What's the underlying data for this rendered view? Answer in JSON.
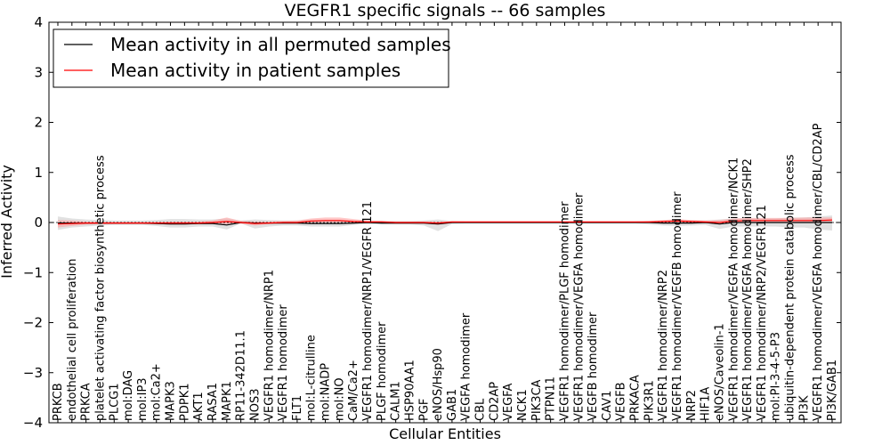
{
  "chart_data": {
    "type": "line",
    "title": "VEGFR1 specific signals -- 66 samples",
    "xlabel": "Cellular Entities",
    "ylabel": "Inferred Activity",
    "ylim": [
      -4,
      4
    ],
    "yticks": [
      -4,
      -3,
      -2,
      -1,
      0,
      1,
      2,
      3,
      4
    ],
    "ytick_labels": [
      "−4",
      "−3",
      "−2",
      "−1",
      "0",
      "1",
      "2",
      "3",
      "4"
    ],
    "legend_position": "top-left",
    "grid": false,
    "categories": [
      "PRKCB",
      "endothelial cell proliferation",
      "PRKCA",
      "platelet activating factor biosynthetic process",
      "PLCG1",
      "mol:DAG",
      "mol:IP3",
      "mol:Ca2+",
      "MAPK3",
      "PDPK1",
      "AKT1",
      "RASA1",
      "MAPK1",
      "RP11-342D11.1",
      "NOS3",
      "VEGFR1 homodimer/NRP1",
      "VEGFR1 homodimer",
      "FLT1",
      "mol:L-citrulline",
      "mol:NADP",
      "mol:NO",
      "CaM/Ca2+",
      "VEGFR1 homodimer/NRP1/VEGFR 121",
      "PLGF homodimer",
      "CALM1",
      "HSP90AA1",
      "PGF",
      "eNOS/Hsp90",
      "GAB1",
      "VEGFA homodimer",
      "CBL",
      "CD2AP",
      "VEGFA",
      "NCK1",
      "PIK3CA",
      "PTPN11",
      "VEGFR1 homodimer/PLGF homodimer",
      "VEGFR1 homodimer/VEGFA homodimer",
      "VEGFB homodimer",
      "CAV1",
      "VEGFB",
      "PRKACA",
      "PIK3R1",
      "VEGFR1 homodimer/NRP2",
      "VEGFR1 homodimer/VEGFB homodimer",
      "NRP2",
      "HIF1A",
      "eNOS/Caveolin-1",
      "VEGFR1 homodimer/VEGFA homodimer/NCK1",
      "VEGFR1 homodimer/VEGFA homodimer/SHP2",
      "VEGFR1 homodimer/NRP2/VEGFR121",
      "mol:PI-3-4-5-P3",
      "ubiquitin-dependent protein catabolic process",
      "PI3K",
      "VEGFR1 homodimer/VEGFA homodimer/CBL/CD2AP",
      "PI3K/GAB1"
    ],
    "series": [
      {
        "name": "Mean activity in all permuted samples",
        "color": "#000000",
        "values": [
          -0.01,
          -0.01,
          -0.01,
          -0.01,
          -0.01,
          -0.01,
          -0.01,
          -0.02,
          -0.03,
          -0.03,
          -0.02,
          -0.02,
          -0.05,
          0.0,
          -0.01,
          -0.01,
          -0.01,
          -0.01,
          -0.02,
          -0.02,
          -0.02,
          -0.01,
          0.0,
          -0.01,
          -0.01,
          -0.01,
          -0.01,
          -0.03,
          0.0,
          0.0,
          0.0,
          0.0,
          0.0,
          0.0,
          0.0,
          0.0,
          0.0,
          0.0,
          0.0,
          0.0,
          0.0,
          0.0,
          0.0,
          -0.01,
          -0.01,
          -0.01,
          0.0,
          -0.03,
          0.0,
          0.0,
          0.0,
          0.0,
          0.0,
          0.0,
          0.0,
          0.0
        ],
        "band_low": [
          -0.15,
          -0.1,
          -0.08,
          -0.06,
          -0.05,
          -0.05,
          -0.05,
          -0.07,
          -0.1,
          -0.1,
          -0.08,
          -0.08,
          -0.14,
          -0.02,
          -0.12,
          -0.08,
          -0.06,
          -0.06,
          -0.08,
          -0.08,
          -0.08,
          -0.05,
          -0.03,
          -0.04,
          -0.04,
          -0.04,
          -0.06,
          -0.17,
          -0.03,
          -0.02,
          -0.02,
          -0.02,
          -0.02,
          -0.02,
          -0.02,
          -0.02,
          -0.02,
          -0.02,
          -0.02,
          -0.02,
          -0.02,
          -0.02,
          -0.04,
          -0.06,
          -0.07,
          -0.06,
          -0.05,
          -0.13,
          -0.08,
          -0.08,
          -0.08,
          -0.08,
          -0.1,
          -0.1,
          -0.14,
          -0.16
        ],
        "band_high": [
          0.12,
          0.08,
          0.06,
          0.05,
          0.04,
          0.04,
          0.04,
          0.05,
          0.07,
          0.07,
          0.06,
          0.06,
          0.08,
          0.04,
          0.06,
          0.05,
          0.04,
          0.04,
          0.05,
          0.05,
          0.05,
          0.04,
          0.03,
          0.03,
          0.03,
          0.03,
          0.04,
          0.06,
          0.03,
          0.02,
          0.02,
          0.02,
          0.02,
          0.02,
          0.02,
          0.02,
          0.02,
          0.02,
          0.02,
          0.02,
          0.02,
          0.02,
          0.03,
          0.04,
          0.05,
          0.04,
          0.04,
          0.06,
          0.08,
          0.08,
          0.08,
          0.08,
          0.1,
          0.1,
          0.12,
          0.14
        ]
      },
      {
        "name": "Mean activity in patient samples",
        "color": "#ff0000",
        "values": [
          -0.03,
          -0.02,
          -0.01,
          -0.01,
          -0.01,
          -0.01,
          -0.01,
          -0.01,
          -0.01,
          -0.01,
          -0.01,
          0.0,
          0.02,
          0.0,
          -0.02,
          -0.01,
          0.0,
          0.0,
          0.03,
          0.04,
          0.04,
          0.02,
          0.01,
          0.01,
          0.0,
          0.0,
          0.0,
          -0.01,
          0.01,
          0.01,
          0.01,
          0.01,
          0.01,
          0.01,
          0.01,
          0.01,
          0.01,
          0.01,
          0.01,
          0.01,
          0.01,
          0.01,
          0.01,
          0.02,
          0.03,
          0.02,
          0.01,
          0.0,
          0.03,
          0.04,
          0.04,
          0.04,
          0.04,
          0.04,
          0.04,
          0.05
        ],
        "band_low": [
          -0.1,
          -0.07,
          -0.04,
          -0.03,
          -0.03,
          -0.03,
          -0.03,
          -0.03,
          -0.04,
          -0.04,
          -0.03,
          -0.03,
          -0.03,
          -0.02,
          -0.06,
          -0.03,
          -0.02,
          -0.02,
          -0.01,
          0.0,
          0.0,
          -0.01,
          -0.01,
          -0.01,
          -0.02,
          -0.02,
          -0.02,
          -0.05,
          -0.01,
          0.0,
          0.0,
          0.0,
          0.0,
          0.0,
          0.0,
          0.0,
          0.0,
          0.0,
          0.0,
          0.0,
          0.0,
          0.0,
          0.0,
          0.0,
          0.0,
          0.0,
          -0.01,
          -0.04,
          0.0,
          0.01,
          0.01,
          0.01,
          0.01,
          0.01,
          0.01,
          0.01
        ],
        "band_high": [
          0.05,
          0.04,
          0.02,
          0.01,
          0.01,
          0.01,
          0.01,
          0.01,
          0.02,
          0.02,
          0.02,
          0.04,
          0.1,
          0.03,
          0.02,
          0.02,
          0.03,
          0.04,
          0.08,
          0.1,
          0.1,
          0.07,
          0.04,
          0.03,
          0.02,
          0.02,
          0.02,
          0.02,
          0.02,
          0.02,
          0.02,
          0.02,
          0.02,
          0.02,
          0.02,
          0.02,
          0.02,
          0.02,
          0.02,
          0.02,
          0.02,
          0.02,
          0.03,
          0.05,
          0.07,
          0.05,
          0.04,
          0.05,
          0.08,
          0.09,
          0.09,
          0.09,
          0.09,
          0.1,
          0.1,
          0.1
        ]
      }
    ],
    "colors": {
      "permuted_band": "#c8c8c8",
      "patient_band": "#ff9999",
      "zero_line": "#000000"
    }
  }
}
